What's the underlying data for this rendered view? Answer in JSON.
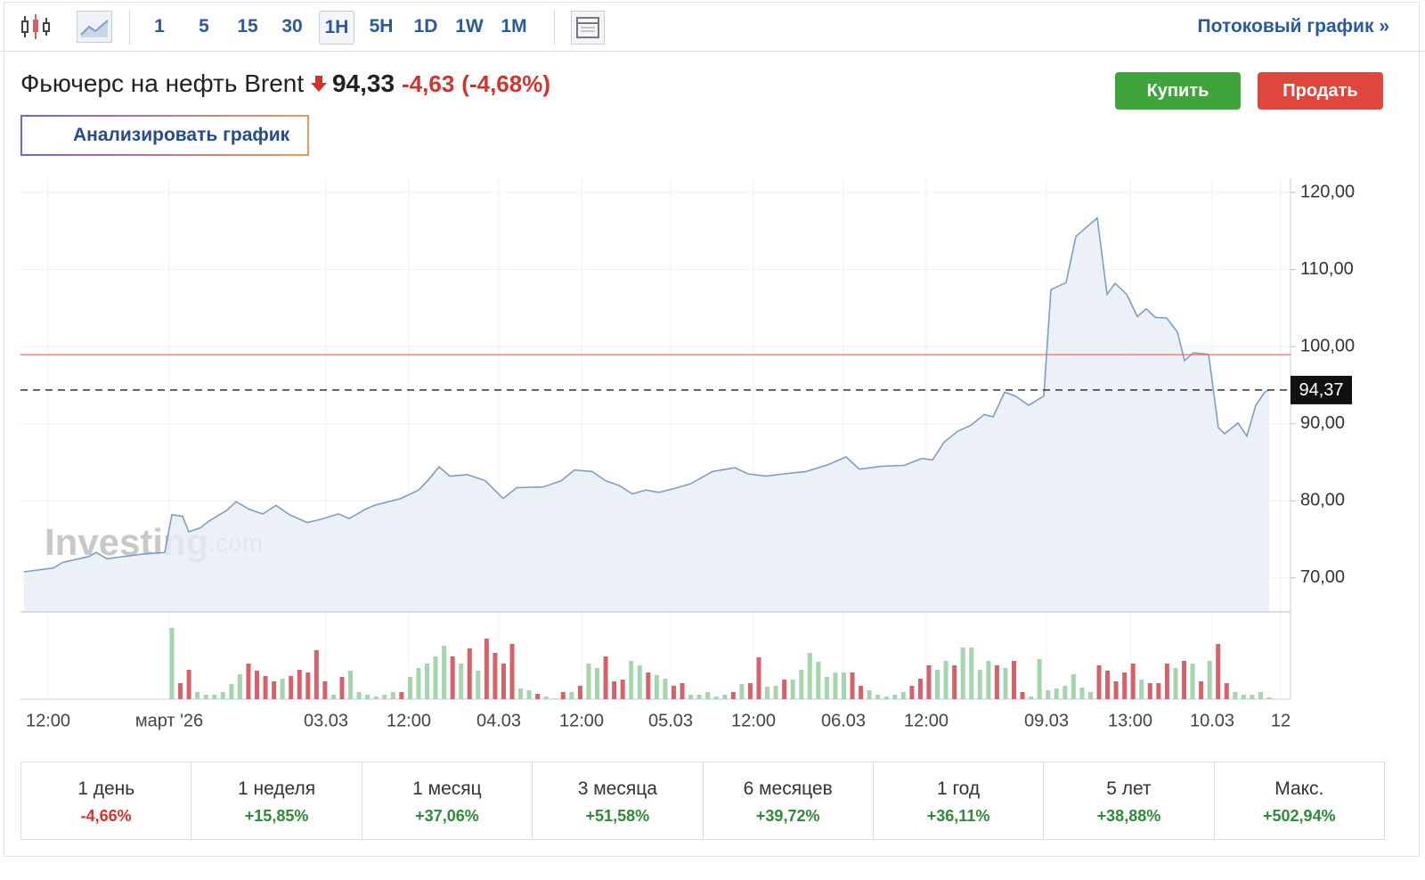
{
  "toolbar": {
    "intervals": [
      "1",
      "5",
      "15",
      "30",
      "1H",
      "5H",
      "1D",
      "1W",
      "1M"
    ],
    "active": "1H",
    "stream_link": "Потоковый график »"
  },
  "header": {
    "title": "Фьючерс на нефть Brent",
    "price": "94,33",
    "change": "-4,63",
    "change_pct": "(-4,68%)"
  },
  "buttons": {
    "buy": "Купить",
    "sell": "Продать",
    "analyze": "Анализировать график"
  },
  "watermark": {
    "brand": "Investing",
    "suffix": ".com"
  },
  "chart_data": {
    "type": "area",
    "color": "#7f9ec2",
    "fill": "#e7edf6",
    "x": [
      0.4,
      3.7,
      4.7,
      7.7,
      8.5,
      9.7,
      11.7,
      13.7,
      16.2,
      17.0,
      18.2,
      18.9,
      20.2,
      21.2,
      23.2,
      24.2,
      25.7,
      27.2,
      28.7,
      30.2,
      32.2,
      33.7,
      35.7,
      36.9,
      38.7,
      39.7,
      42.7,
      44.7,
      45.7,
      47.0,
      48.2,
      50.2,
      52.2,
      54.2,
      55.7,
      58.7,
      60.7,
      62.2,
      64.2,
      65.7,
      67.2,
      68.7,
      70.2,
      71.7,
      73.7,
      75.2,
      77.7,
      80.2,
      81.7,
      83.7,
      85.7,
      88.2,
      90.7,
      92.7,
      94.2,
      96.7,
      99.2,
      101.2,
      102.4,
      103.7,
      105.2,
      106.7,
      108.2,
      109.2,
      110.5,
      111.7,
      113.2,
      114.9,
      115.7,
      117.4,
      118.5,
      120.9,
      122.0,
      122.9,
      124.2,
      125.4,
      126.4,
      127.4,
      128.7,
      129.9,
      130.7,
      131.7,
      133.4,
      134.5,
      135.2,
      136.7,
      137.7,
      138.7,
      139.7,
      140.2
    ],
    "values": [
      70.8,
      71.3,
      72.0,
      72.8,
      73.3,
      72.5,
      72.8,
      73.1,
      73.3,
      78.2,
      78.0,
      76.0,
      76.5,
      77.4,
      78.8,
      79.9,
      78.9,
      78.3,
      79.4,
      78.2,
      77.2,
      77.6,
      78.3,
      77.7,
      78.9,
      79.4,
      80.3,
      81.4,
      82.6,
      84.4,
      83.2,
      83.4,
      82.6,
      80.3,
      81.7,
      81.8,
      82.6,
      84.0,
      83.8,
      82.6,
      82.0,
      80.9,
      81.4,
      81.1,
      81.7,
      82.2,
      83.8,
      84.3,
      83.5,
      83.2,
      83.5,
      83.8,
      84.7,
      85.7,
      84.1,
      84.5,
      84.6,
      85.5,
      85.3,
      87.6,
      89.0,
      89.8,
      91.2,
      90.9,
      94.1,
      93.6,
      92.4,
      93.6,
      107.4,
      108.3,
      114.3,
      116.7,
      106.8,
      108.2,
      106.8,
      103.9,
      104.9,
      103.8,
      103.7,
      101.9,
      98.2,
      99.2,
      99.0,
      89.5,
      88.7,
      90.1,
      88.4,
      92.4,
      94.1,
      94.4
    ],
    "xlim": [
      0,
      142.6
    ],
    "xticks": [
      {
        "value": 3.1,
        "label": "12:00"
      },
      {
        "value": 16.7,
        "label": "март '26"
      },
      {
        "value": 34.3,
        "label": "03.03"
      },
      {
        "value": 43.6,
        "label": "12:00"
      },
      {
        "value": 53.7,
        "label": "04.03"
      },
      {
        "value": 63.0,
        "label": "12:00"
      },
      {
        "value": 73.0,
        "label": "05.03"
      },
      {
        "value": 82.3,
        "label": "12:00"
      },
      {
        "value": 92.4,
        "label": "06.03"
      },
      {
        "value": 101.7,
        "label": "12:00"
      },
      {
        "value": 115.2,
        "label": "09.03"
      },
      {
        "value": 124.6,
        "label": "13:00"
      },
      {
        "value": 133.8,
        "label": "10.03"
      },
      {
        "value": 141.5,
        "label": "12"
      }
    ],
    "ylim": [
      65.6,
      121.85
    ],
    "yticks": [
      {
        "value": 120,
        "label": "120,00"
      },
      {
        "value": 110,
        "label": "110,00"
      },
      {
        "value": 100,
        "label": "100,00"
      },
      {
        "value": 90,
        "label": "90,00"
      },
      {
        "value": 80,
        "label": "80,00"
      },
      {
        "value": 70,
        "label": "70,00"
      }
    ],
    "grid": true,
    "current": {
      "value": 94.37,
      "label": "94,37"
    },
    "reference_line": {
      "value": 98.96,
      "color": "#e0655c"
    },
    "volume": {
      "values": [
        80,
        18,
        33,
        8,
        5,
        5,
        8,
        17,
        28,
        40,
        32,
        26,
        20,
        23,
        26,
        33,
        30,
        55,
        20,
        5,
        25,
        32,
        8,
        5,
        3,
        5,
        8,
        8,
        25,
        35,
        40,
        48,
        60,
        48,
        40,
        57,
        32,
        68,
        52,
        40,
        62,
        12,
        10,
        6,
        3,
        1,
        8,
        8,
        15,
        40,
        35,
        48,
        20,
        22,
        43,
        38,
        30,
        27,
        23,
        15,
        18,
        5,
        5,
        8,
        3,
        5,
        8,
        17,
        18,
        47,
        14,
        15,
        22,
        22,
        33,
        52,
        42,
        25,
        30,
        30,
        30,
        15,
        10,
        5,
        3,
        5,
        8,
        15,
        23,
        38,
        33,
        43,
        38,
        58,
        58,
        33,
        43,
        38,
        35,
        43,
        8,
        3,
        45,
        10,
        12,
        15,
        28,
        13,
        8,
        38,
        32,
        20,
        30,
        40,
        22,
        18,
        18,
        40,
        35,
        43,
        40,
        20,
        43,
        62,
        18,
        8,
        5,
        5,
        8,
        2
      ],
      "colors": [
        "#a5d5ac",
        "#d6616b",
        "#d6616b",
        "#a5d5ac",
        "#a5d5ac",
        "#a5d5ac",
        "#a5d5ac",
        "#a5d5ac",
        "#a5d5ac",
        "#d6616b",
        "#d6616b",
        "#d6616b",
        "#d6616b",
        "#a5d5ac",
        "#d6616b",
        "#d6616b",
        "#d6616b",
        "#d6616b",
        "#d6616b",
        "#a5d5ac",
        "#d6616b",
        "#a5d5ac",
        "#a5d5ac",
        "#a5d5ac",
        "#a5d5ac",
        "#a5d5ac",
        "#a5d5ac",
        "#d6616b",
        "#a5d5ac",
        "#a5d5ac",
        "#a5d5ac",
        "#a5d5ac",
        "#a5d5ac",
        "#d6616b",
        "#a5d5ac",
        "#d6616b",
        "#a5d5ac",
        "#d6616b",
        "#d6616b",
        "#d6616b",
        "#d6616b",
        "#a5d5ac",
        "#a5d5ac",
        "#d6616b",
        "#a5d5ac",
        "#a5d5ac",
        "#d6616b",
        "#a5d5ac",
        "#d6616b",
        "#a5d5ac",
        "#a5d5ac",
        "#d6616b",
        "#d6616b",
        "#d6616b",
        "#a5d5ac",
        "#a5d5ac",
        "#d6616b",
        "#a5d5ac",
        "#a5d5ac",
        "#d6616b",
        "#d6616b",
        "#a5d5ac",
        "#a5d5ac",
        "#a5d5ac",
        "#a5d5ac",
        "#a5d5ac",
        "#d6616b",
        "#a5d5ac",
        "#d6616b",
        "#d6616b",
        "#a5d5ac",
        "#a5d5ac",
        "#d6616b",
        "#a5d5ac",
        "#a5d5ac",
        "#a5d5ac",
        "#a5d5ac",
        "#a5d5ac",
        "#a5d5ac",
        "#a5d5ac",
        "#d6616b",
        "#d6616b",
        "#a5d5ac",
        "#a5d5ac",
        "#a5d5ac",
        "#a5d5ac",
        "#a5d5ac",
        "#d6616b",
        "#d6616b",
        "#d6616b",
        "#a5d5ac",
        "#a5d5ac",
        "#d6616b",
        "#a5d5ac",
        "#a5d5ac",
        "#a5d5ac",
        "#a5d5ac",
        "#d6616b",
        "#a5d5ac",
        "#d6616b",
        "#d6616b",
        "#a5d5ac",
        "#a5d5ac",
        "#a5d5ac",
        "#a5d5ac",
        "#a5d5ac",
        "#a5d5ac",
        "#a5d5ac",
        "#a5d5ac",
        "#d6616b",
        "#d6616b",
        "#d6616b",
        "#d6616b",
        "#d6616b",
        "#a5d5ac",
        "#d6616b",
        "#d6616b",
        "#d6616b",
        "#a5d5ac",
        "#d6616b",
        "#a5d5ac",
        "#d6616b",
        "#a5d5ac",
        "#d6616b",
        "#d6616b",
        "#a5d5ac",
        "#a5d5ac",
        "#a5d5ac",
        "#a5d5ac",
        "#a5d5ac"
      ]
    }
  },
  "periods": [
    {
      "label": "1 день",
      "change": "-4,66%",
      "color": "#d0342c"
    },
    {
      "label": "1 неделя",
      "change": "+15,85%",
      "color": "#2f8a3a"
    },
    {
      "label": "1 месяц",
      "change": "+37,06%",
      "color": "#2f8a3a"
    },
    {
      "label": "3 месяца",
      "change": "+51,58%",
      "color": "#2f8a3a"
    },
    {
      "label": "6 месяцев",
      "change": "+39,72%",
      "color": "#2f8a3a"
    },
    {
      "label": "1 год",
      "change": "+36,11%",
      "color": "#2f8a3a"
    },
    {
      "label": "5 лет",
      "change": "+38,88%",
      "color": "#2f8a3a"
    },
    {
      "label": "Макс.",
      "change": "+502,94%",
      "color": "#2f8a3a"
    }
  ]
}
